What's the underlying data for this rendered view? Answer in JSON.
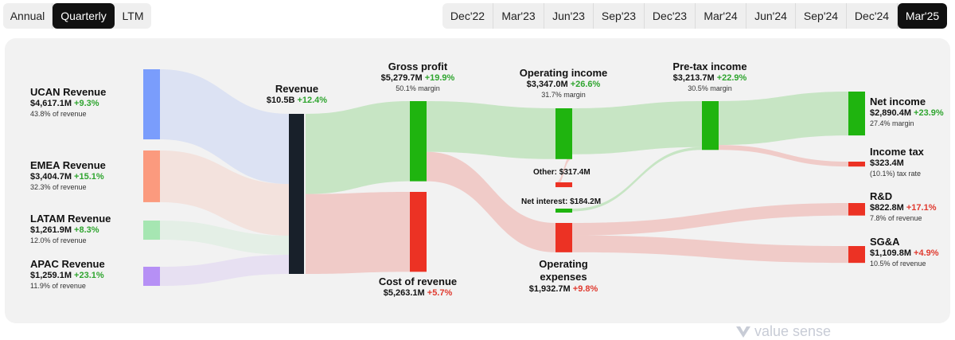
{
  "period_toggle": {
    "items": [
      "Annual",
      "Quarterly",
      "LTM"
    ],
    "active": "Quarterly"
  },
  "quarters": {
    "items": [
      "Dec'22",
      "Mar'23",
      "Jun'23",
      "Sep'23",
      "Dec'23",
      "Mar'24",
      "Jun'24",
      "Sep'24",
      "Dec'24",
      "Mar'25"
    ],
    "active": "Mar'25"
  },
  "watermark": "value sense",
  "colors": {
    "positive": "#2fa52f",
    "negative": "#e03a2f",
    "revenue": "#18202a",
    "green": "#1fb40f",
    "red": "#ec3224"
  },
  "chart_data": {
    "type": "sankey",
    "unit": "USD",
    "nodes": [
      {
        "id": "ucan",
        "title": "UCAN Revenue",
        "value": 4617.1,
        "value_text": "$4,617.1M",
        "change": "+9.3%",
        "sub": "43.8% of revenue",
        "color": "#7a9dfc"
      },
      {
        "id": "emea",
        "title": "EMEA Revenue",
        "value": 3404.7,
        "value_text": "$3,404.7M",
        "change": "+15.1%",
        "sub": "32.3% of revenue",
        "color": "#fb9a7e"
      },
      {
        "id": "latam",
        "title": "LATAM Revenue",
        "value": 1261.9,
        "value_text": "$1,261.9M",
        "change": "+8.3%",
        "sub": "12.0% of revenue",
        "color": "#a6e6b2"
      },
      {
        "id": "apac",
        "title": "APAC Revenue",
        "value": 1259.1,
        "value_text": "$1,259.1M",
        "change": "+23.1%",
        "sub": "11.9% of revenue",
        "color": "#b690f5"
      },
      {
        "id": "revenue",
        "title": "Revenue",
        "value": 10542.8,
        "value_text": "$10.5B",
        "change": "+12.4%",
        "sub": "",
        "color": "#18202a"
      },
      {
        "id": "gross",
        "title": "Gross profit",
        "value": 5279.7,
        "value_text": "$5,279.7M",
        "change": "+19.9%",
        "sub": "50.1% margin",
        "color": "#1fb40f"
      },
      {
        "id": "cor",
        "title": "Cost of revenue",
        "value": 5263.1,
        "value_text": "$5,263.1M",
        "change": "+5.7%",
        "sub": "",
        "color": "#ec3224"
      },
      {
        "id": "opinc",
        "title": "Operating income",
        "value": 3347.0,
        "value_text": "$3,347.0M",
        "change": "+26.6%",
        "sub": "31.7% margin",
        "color": "#1fb40f"
      },
      {
        "id": "opex",
        "title": "Operating expenses",
        "value": 1932.7,
        "value_text": "$1,932.7M",
        "change": "+9.8%",
        "sub": "",
        "color": "#ec3224"
      },
      {
        "id": "other",
        "title": "Other",
        "value": 317.4,
        "value_text": "$317.4M",
        "change": "",
        "sub": "",
        "color": "#ec3224"
      },
      {
        "id": "netint",
        "title": "Net interest",
        "value": 184.2,
        "value_text": "$184.2M",
        "change": "",
        "sub": "",
        "color": "#1fb40f"
      },
      {
        "id": "pretax",
        "title": "Pre-tax income",
        "value": 3213.7,
        "value_text": "$3,213.7M",
        "change": "+22.9%",
        "sub": "30.5% margin",
        "color": "#1fb40f"
      },
      {
        "id": "netinc",
        "title": "Net income",
        "value": 2890.4,
        "value_text": "$2,890.4M",
        "change": "+23.9%",
        "sub": "27.4% margin",
        "color": "#1fb40f"
      },
      {
        "id": "tax",
        "title": "Income tax",
        "value": 323.4,
        "value_text": "$323.4M",
        "change": "",
        "sub": "(10.1%) tax rate",
        "color": "#ec3224"
      },
      {
        "id": "rnd",
        "title": "R&D",
        "value": 822.8,
        "value_text": "$822.8M",
        "change": "+17.1%",
        "sub": "7.8% of revenue",
        "color": "#ec3224"
      },
      {
        "id": "sga",
        "title": "SG&A",
        "value": 1109.8,
        "value_text": "$1,109.8M",
        "change": "+4.9%",
        "sub": "10.5% of revenue",
        "color": "#ec3224"
      }
    ],
    "links": [
      {
        "source": "ucan",
        "target": "revenue",
        "value": 4617.1
      },
      {
        "source": "emea",
        "target": "revenue",
        "value": 3404.7
      },
      {
        "source": "latam",
        "target": "revenue",
        "value": 1261.9
      },
      {
        "source": "apac",
        "target": "revenue",
        "value": 1259.1
      },
      {
        "source": "revenue",
        "target": "gross",
        "value": 5279.7
      },
      {
        "source": "revenue",
        "target": "cor",
        "value": 5263.1
      },
      {
        "source": "gross",
        "target": "opinc",
        "value": 3347.0
      },
      {
        "source": "gross",
        "target": "opex",
        "value": 1932.7
      },
      {
        "source": "opinc",
        "target": "pretax",
        "value": 3029.6
      },
      {
        "source": "opinc",
        "target": "other",
        "value": 317.4
      },
      {
        "source": "netint",
        "target": "pretax",
        "value": 184.2
      },
      {
        "source": "pretax",
        "target": "netinc",
        "value": 2890.4
      },
      {
        "source": "pretax",
        "target": "tax",
        "value": 323.4
      },
      {
        "source": "opex",
        "target": "rnd",
        "value": 822.8
      },
      {
        "source": "opex",
        "target": "sga",
        "value": 1109.8
      }
    ]
  }
}
